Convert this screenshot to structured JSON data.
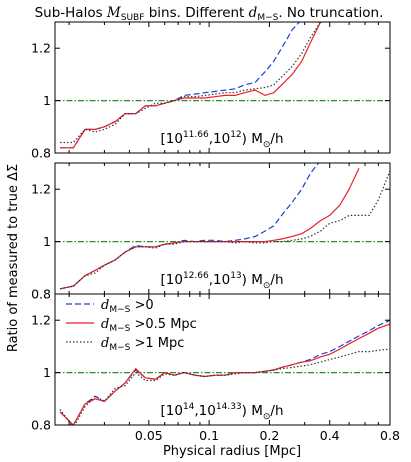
{
  "figure": {
    "title_prefix": "Sub-Halos ",
    "title_m": "M",
    "title_m_sub": "SUBF",
    "title_mid": " bins. Different ",
    "title_d": "d",
    "title_d_sub": "M−S",
    "title_suffix": ". No truncation.",
    "ylabel": "Ratio of measured to true ΔΣ",
    "xlabel": "Physical radius [Mpc]",
    "colors": {
      "d0": "#1f3fd6",
      "d05": "#e8202a",
      "d1": "#333333",
      "ref": "#2e8b2e"
    }
  },
  "legend": {
    "entries": [
      {
        "key": "d0",
        "d": "d",
        "sub": "M−S",
        "suffix": " >0"
      },
      {
        "key": "d05",
        "d": "d",
        "sub": "M−S",
        "suffix": " >0.5 Mpc"
      },
      {
        "key": "d1",
        "d": "d",
        "sub": "M−S",
        "suffix": " >1 Mpc"
      }
    ]
  },
  "chart_data": [
    {
      "type": "line",
      "panel_label": "[10^11.66, 10^12) M⊙/h",
      "label_parts": {
        "open": "[10",
        "e1": "11.66",
        "mid": ",10",
        "e2": "12",
        "close": ")  M",
        "sun": "⊙",
        "unit": "/h"
      },
      "xlabel": "Physical radius [Mpc]",
      "ylabel": "Ratio of measured to true ΔΣ",
      "xscale": "log",
      "xlim": [
        0.017,
        0.8
      ],
      "ylim": [
        0.8,
        1.3
      ],
      "yticks": [
        "0.8",
        "1",
        "1.2"
      ],
      "reference_line": 1.0,
      "x": [
        0.018,
        0.021,
        0.024,
        0.027,
        0.03,
        0.034,
        0.038,
        0.043,
        0.048,
        0.054,
        0.06,
        0.067,
        0.075,
        0.085,
        0.095,
        0.107,
        0.12,
        0.135,
        0.15,
        0.17,
        0.19,
        0.21,
        0.23,
        0.26,
        0.29,
        0.32,
        0.36,
        0.4
      ],
      "series": [
        {
          "key": "d0",
          "name": "d_M−S >0",
          "values": [
            0.82,
            0.82,
            0.89,
            0.89,
            0.9,
            0.92,
            0.95,
            0.95,
            0.98,
            0.98,
            0.99,
            1.0,
            1.02,
            1.025,
            1.03,
            1.035,
            1.04,
            1.045,
            1.06,
            1.07,
            1.11,
            1.15,
            1.2,
            1.27,
            1.31,
            null,
            null,
            null
          ]
        },
        {
          "key": "d05",
          "name": "d_M−S >0.5 Mpc",
          "values": [
            0.82,
            0.82,
            0.89,
            0.89,
            0.9,
            0.92,
            0.95,
            0.95,
            0.98,
            0.98,
            0.99,
            1.0,
            1.01,
            1.01,
            1.01,
            1.015,
            1.02,
            1.02,
            1.03,
            1.04,
            1.02,
            1.03,
            1.06,
            1.1,
            1.15,
            1.22,
            1.3,
            null
          ]
        },
        {
          "key": "d1",
          "name": "d_M−S >1 Mpc",
          "values": [
            0.84,
            0.84,
            0.89,
            0.88,
            0.89,
            0.91,
            0.95,
            0.95,
            0.97,
            0.99,
            0.99,
            1.0,
            1.015,
            1.015,
            1.02,
            1.025,
            1.03,
            1.03,
            1.04,
            1.045,
            1.05,
            1.06,
            1.09,
            1.13,
            1.18,
            1.24,
            1.3,
            null
          ]
        }
      ]
    },
    {
      "type": "line",
      "panel_label": "[10^12.66, 10^13) M⊙/h",
      "label_parts": {
        "open": "[10",
        "e1": "12.66",
        "mid": ",10",
        "e2": "13",
        "close": ")  M",
        "sun": "⊙",
        "unit": "/h"
      },
      "xscale": "log",
      "xlim": [
        0.017,
        0.8
      ],
      "ylim": [
        0.8,
        1.3
      ],
      "yticks": [
        "0.8",
        "1",
        "1.2"
      ],
      "reference_line": 1.0,
      "x": [
        0.018,
        0.021,
        0.024,
        0.027,
        0.03,
        0.034,
        0.038,
        0.043,
        0.048,
        0.054,
        0.06,
        0.067,
        0.075,
        0.085,
        0.095,
        0.107,
        0.12,
        0.135,
        0.15,
        0.17,
        0.19,
        0.21,
        0.23,
        0.26,
        0.29,
        0.32,
        0.36,
        0.4,
        0.45,
        0.5,
        0.56,
        0.63,
        0.7,
        0.8
      ],
      "series": [
        {
          "key": "d0",
          "values": [
            0.82,
            0.83,
            0.87,
            0.89,
            0.91,
            0.93,
            0.96,
            0.985,
            0.98,
            0.98,
            0.99,
            0.995,
            1.005,
            1.0,
            1.005,
            1.005,
            1.0,
            1.005,
            1.01,
            1.02,
            1.04,
            1.06,
            1.1,
            1.15,
            1.2,
            1.26,
            1.31,
            null,
            null,
            null,
            null,
            null,
            null,
            null
          ]
        },
        {
          "key": "d05",
          "values": [
            0.82,
            0.83,
            0.87,
            0.89,
            0.91,
            0.93,
            0.96,
            0.98,
            0.98,
            0.98,
            0.99,
            0.995,
            1.0,
            1.0,
            1.0,
            1.0,
            1.0,
            1.0,
            1.0,
            1.0,
            1.0,
            1.005,
            1.01,
            1.02,
            1.03,
            1.05,
            1.08,
            1.1,
            1.14,
            1.2,
            1.28,
            null,
            null,
            null
          ]
        },
        {
          "key": "d1",
          "values": [
            0.82,
            0.83,
            0.87,
            0.88,
            0.91,
            0.93,
            0.96,
            0.98,
            0.98,
            0.975,
            0.99,
            0.99,
            1.0,
            1.0,
            1.0,
            1.0,
            1.0,
            0.995,
            1.0,
            0.995,
            0.995,
            1.0,
            1.0,
            1.005,
            1.01,
            1.02,
            1.04,
            1.07,
            1.08,
            1.1,
            1.1,
            1.1,
            1.16,
            1.27
          ]
        }
      ]
    },
    {
      "type": "line",
      "panel_label": "[10^14, 10^14.33) M⊙/h",
      "label_parts": {
        "open": "[10",
        "e1": "14",
        "mid": ",10",
        "e2": "14.33",
        "close": ")  M",
        "sun": "⊙",
        "unit": "/h"
      },
      "xscale": "log",
      "xlim": [
        0.017,
        0.8
      ],
      "ylim": [
        0.8,
        1.3
      ],
      "yticks": [
        "0.8",
        "1",
        "1.2"
      ],
      "xticks": [
        {
          "v": 0.05,
          "label": "0.05"
        },
        {
          "v": 0.1,
          "label": "0.1"
        },
        {
          "v": 0.2,
          "label": "0.2"
        },
        {
          "v": 0.4,
          "label": "0.4"
        },
        {
          "v": 0.8,
          "label": "0.8"
        }
      ],
      "reference_line": 1.0,
      "x": [
        0.018,
        0.021,
        0.024,
        0.027,
        0.03,
        0.034,
        0.038,
        0.043,
        0.048,
        0.054,
        0.06,
        0.067,
        0.075,
        0.085,
        0.095,
        0.107,
        0.12,
        0.135,
        0.15,
        0.17,
        0.19,
        0.21,
        0.23,
        0.26,
        0.29,
        0.32,
        0.36,
        0.4,
        0.45,
        0.5,
        0.56,
        0.63,
        0.7,
        0.8
      ],
      "series": [
        {
          "key": "d0",
          "values": [
            0.85,
            0.8,
            0.88,
            0.91,
            0.89,
            0.93,
            0.96,
            1.01,
            0.98,
            0.975,
            1.0,
            0.99,
            1.0,
            0.99,
            0.985,
            0.99,
            0.99,
            1.0,
            1.0,
            1.0,
            1.005,
            1.01,
            1.02,
            1.03,
            1.04,
            1.05,
            1.07,
            1.08,
            1.1,
            1.12,
            1.14,
            1.16,
            1.18,
            1.2
          ]
        },
        {
          "key": "d05",
          "values": [
            0.85,
            0.8,
            0.88,
            0.9,
            0.89,
            0.93,
            0.96,
            1.015,
            0.98,
            0.975,
            1.0,
            0.99,
            1.0,
            0.99,
            0.985,
            0.99,
            0.99,
            1.0,
            1.0,
            1.0,
            1.005,
            1.01,
            1.02,
            1.03,
            1.04,
            1.045,
            1.06,
            1.07,
            1.09,
            1.11,
            1.13,
            1.15,
            1.17,
            1.185
          ]
        },
        {
          "key": "d1",
          "values": [
            0.86,
            0.79,
            0.87,
            0.91,
            0.89,
            0.94,
            0.95,
            1.0,
            0.97,
            0.97,
            0.995,
            0.99,
            1.0,
            0.99,
            0.985,
            0.99,
            0.99,
            0.995,
            1.0,
            1.0,
            1.005,
            1.01,
            1.015,
            1.02,
            1.025,
            1.03,
            1.04,
            1.05,
            1.06,
            1.07,
            1.08,
            1.08,
            1.085,
            1.09
          ]
        }
      ]
    }
  ]
}
